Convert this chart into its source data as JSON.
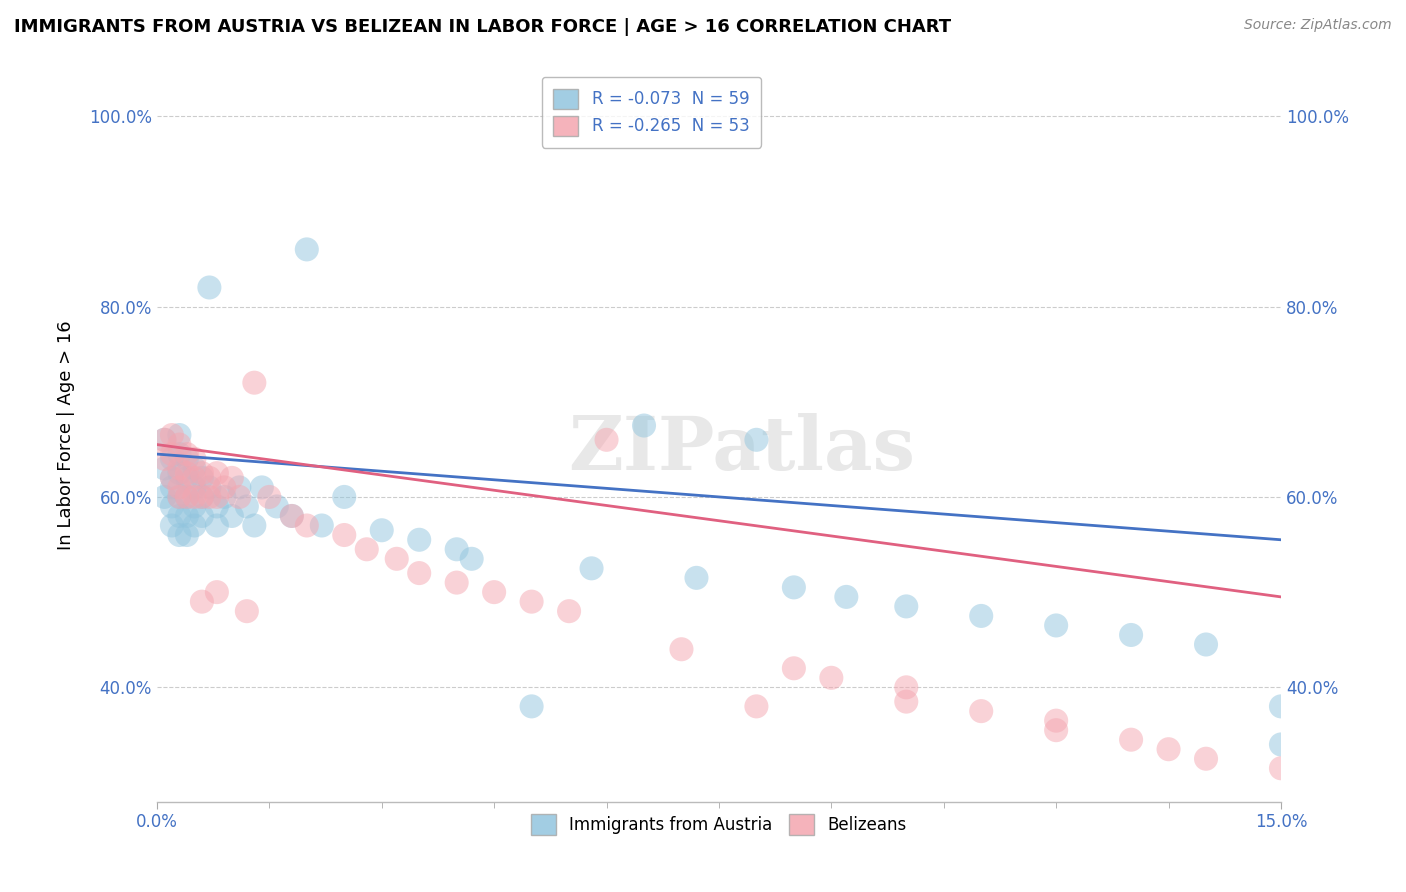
{
  "title": "IMMIGRANTS FROM AUSTRIA VS BELIZEAN IN LABOR FORCE | AGE > 16 CORRELATION CHART",
  "source": "Source: ZipAtlas.com",
  "ylabel": "In Labor Force | Age > 16",
  "xlim": [
    0.0,
    0.15
  ],
  "ylim": [
    0.28,
    1.05
  ],
  "yticks": [
    0.4,
    0.6,
    0.8,
    1.0
  ],
  "ytick_labels": [
    "40.0%",
    "60.0%",
    "80.0%",
    "100.0%"
  ],
  "xtick_labels": [
    "0.0%",
    "15.0%"
  ],
  "legend_entries": [
    {
      "label": "R = -0.073  N = 59",
      "color": "#92c5de"
    },
    {
      "label": "R = -0.265  N = 53",
      "color": "#f4a6b0"
    }
  ],
  "legend_label1": "Immigrants from Austria",
  "legend_label2": "Belizeans",
  "color_blue": "#92c5de",
  "color_pink": "#f4a6b0",
  "line_color_blue": "#4472c4",
  "line_color_pink": "#e06080",
  "watermark": "ZIPatlas",
  "blue_x": [
    0.001,
    0.001,
    0.001,
    0.002,
    0.002,
    0.002,
    0.002,
    0.002,
    0.003,
    0.003,
    0.003,
    0.003,
    0.003,
    0.003,
    0.004,
    0.004,
    0.004,
    0.004,
    0.004,
    0.005,
    0.005,
    0.005,
    0.005,
    0.006,
    0.006,
    0.006,
    0.007,
    0.007,
    0.008,
    0.008,
    0.009,
    0.01,
    0.011,
    0.012,
    0.013,
    0.014,
    0.016,
    0.018,
    0.02,
    0.022,
    0.025,
    0.03,
    0.035,
    0.04,
    0.042,
    0.05,
    0.058,
    0.065,
    0.072,
    0.08,
    0.085,
    0.092,
    0.1,
    0.11,
    0.12,
    0.13,
    0.14,
    0.15,
    0.15
  ],
  "blue_y": [
    0.63,
    0.66,
    0.6,
    0.62,
    0.64,
    0.61,
    0.59,
    0.57,
    0.625,
    0.645,
    0.665,
    0.6,
    0.58,
    0.56,
    0.62,
    0.64,
    0.6,
    0.58,
    0.56,
    0.63,
    0.61,
    0.59,
    0.57,
    0.62,
    0.6,
    0.58,
    0.82,
    0.61,
    0.59,
    0.57,
    0.6,
    0.58,
    0.61,
    0.59,
    0.57,
    0.61,
    0.59,
    0.58,
    0.86,
    0.57,
    0.6,
    0.565,
    0.555,
    0.545,
    0.535,
    0.38,
    0.525,
    0.675,
    0.515,
    0.66,
    0.505,
    0.495,
    0.485,
    0.475,
    0.465,
    0.455,
    0.445,
    0.38,
    0.34
  ],
  "pink_x": [
    0.001,
    0.001,
    0.002,
    0.002,
    0.002,
    0.003,
    0.003,
    0.003,
    0.003,
    0.004,
    0.004,
    0.004,
    0.005,
    0.005,
    0.005,
    0.006,
    0.006,
    0.007,
    0.007,
    0.008,
    0.008,
    0.009,
    0.01,
    0.011,
    0.013,
    0.015,
    0.018,
    0.02,
    0.025,
    0.028,
    0.032,
    0.035,
    0.04,
    0.045,
    0.05,
    0.055,
    0.06,
    0.07,
    0.08,
    0.085,
    0.09,
    0.1,
    0.1,
    0.11,
    0.12,
    0.12,
    0.13,
    0.135,
    0.14,
    0.15,
    0.012,
    0.008,
    0.006
  ],
  "pink_y": [
    0.64,
    0.66,
    0.62,
    0.645,
    0.665,
    0.61,
    0.63,
    0.655,
    0.6,
    0.625,
    0.645,
    0.6,
    0.62,
    0.64,
    0.6,
    0.625,
    0.6,
    0.62,
    0.6,
    0.625,
    0.6,
    0.61,
    0.62,
    0.6,
    0.72,
    0.6,
    0.58,
    0.57,
    0.56,
    0.545,
    0.535,
    0.52,
    0.51,
    0.5,
    0.49,
    0.48,
    0.66,
    0.44,
    0.38,
    0.42,
    0.41,
    0.4,
    0.385,
    0.375,
    0.365,
    0.355,
    0.345,
    0.335,
    0.325,
    0.315,
    0.48,
    0.5,
    0.49
  ],
  "blue_line": {
    "x0": 0.0,
    "y0": 0.645,
    "x1": 0.15,
    "y1": 0.555
  },
  "pink_line": {
    "x0": 0.0,
    "y0": 0.655,
    "x1": 0.15,
    "y1": 0.495
  }
}
